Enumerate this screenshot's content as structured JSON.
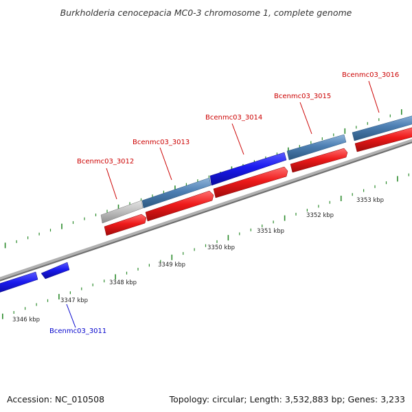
{
  "title": "Burkholderia cenocepacia MC0-3 chromosome 1, complete genome",
  "footer": {
    "accession": "Accession: NC_010508",
    "summary": "Topology: circular; Length: 3,532,883 bp; Genes: 3,233"
  },
  "colors": {
    "forward_gene": "#1a1aee",
    "steel_gene": "#4d7fb3",
    "grey_gene": "#bdbdbd",
    "cds": "#ee1a1a",
    "backbone": "#8a8a8a",
    "tick": "#2a8a2a",
    "label_forward": "#cc0000",
    "label_reverse": "#0000cc"
  },
  "ticks": [
    {
      "label": "3346 kbp"
    },
    {
      "label": "3347 kbp"
    },
    {
      "label": "3348 kbp"
    },
    {
      "label": "3349 kbp"
    },
    {
      "label": "3350 kbp"
    },
    {
      "label": "3351 kbp"
    },
    {
      "label": "3352 kbp"
    },
    {
      "label": "3353 kbp"
    }
  ],
  "genes": [
    {
      "name": "Bcenmc03_3011"
    },
    {
      "name": "Bcenmc03_3012"
    },
    {
      "name": "Bcenmc03_3013"
    },
    {
      "name": "Bcenmc03_3014"
    },
    {
      "name": "Bcenmc03_3015"
    },
    {
      "name": "Bcenmc03_3016"
    }
  ]
}
